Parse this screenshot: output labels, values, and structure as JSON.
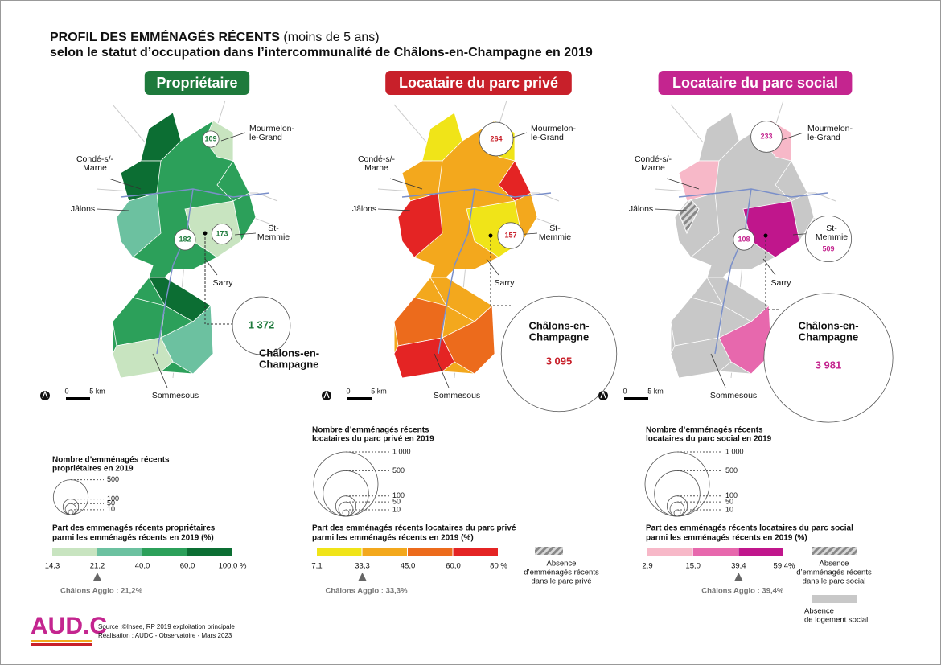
{
  "title": {
    "line1": "PROFIL DES EMMÉNAGÉS RÉCENTS",
    "line1_note": "(moins de 5 ans)",
    "line2": "selon le statut d’occupation dans l’intercommunalité de Châlons-en-Champagne en 2019"
  },
  "scale": {
    "zero": "0",
    "distance": "5 km"
  },
  "maps": [
    {
      "heading": "Propriétaire",
      "color": "#1e7a3c",
      "places": [
        [
          "Mourmelon-",
          "le-Grand"
        ],
        [
          "Condé-s/-",
          "Marne"
        ],
        [
          "Jâlons"
        ],
        [
          "St-",
          "Memmie"
        ],
        [
          "Sarry"
        ],
        [
          "Châlons-en-",
          "Champagne"
        ],
        [
          "Sommesous"
        ]
      ],
      "bubbles": [
        {
          "value": 109
        },
        {
          "value": 182
        },
        {
          "value": 173
        },
        {
          "value": 1372,
          "label": "1 372"
        }
      ],
      "size_legend": {
        "title": [
          "Nombre d’emménagés récents",
          "propriétaires en 2019"
        ],
        "values": [
          500,
          100,
          50,
          10
        ]
      },
      "class_legend": {
        "title": [
          "Part  des emmenagés récents propriétaires",
          "parmi les emménagés récents en 2019 (%)"
        ],
        "breaks": [
          {
            "value": 14.3,
            "label": "14,3"
          },
          {
            "value": 21.2,
            "label": "21,2"
          },
          {
            "value": 40.0,
            "label": "40,0"
          },
          {
            "value": 60.0,
            "label": "60,0"
          },
          {
            "value": 100.0,
            "label": "100,0 %"
          }
        ],
        "colors": [
          "#c8e4c0",
          "#6cc1a0",
          "#2ca05a",
          "#0c6e33"
        ],
        "agglo": {
          "value": 21.2,
          "label": "Châlons Agglo : 21,2%"
        }
      }
    },
    {
      "heading": "Locataire du parc privé",
      "color": "#c8202a",
      "places": [
        [
          "Mourmelon-",
          "le-Grand"
        ],
        [
          "Condé-s/-",
          "Marne"
        ],
        [
          "Jâlons"
        ],
        [
          "St-",
          "Memmie"
        ],
        [
          "Sarry"
        ],
        [
          "Châlons-en-",
          "Champagne"
        ],
        [
          "Sommesous"
        ]
      ],
      "bubbles": [
        {
          "value": 264
        },
        {
          "value": 157
        },
        {
          "value": 3095,
          "label": "3 095"
        }
      ],
      "size_legend": {
        "title": [
          "Nombre d’emménagés récents",
          "locataires du parc privé en 2019"
        ],
        "values": [
          {
            "value": 1000,
            "label": "1 000"
          },
          500,
          100,
          50,
          10
        ]
      },
      "class_legend": {
        "title": [
          "Part  des emménagés récents locataires du parc privé",
          "parmi les emménagés récents en 2019 (%)"
        ],
        "breaks": [
          {
            "value": 7.1,
            "label": "7,1"
          },
          {
            "value": 33.3,
            "label": "33,3"
          },
          {
            "value": 45.0,
            "label": "45,0"
          },
          {
            "value": 60.0,
            "label": "60,0"
          },
          {
            "value": 80,
            "label": "80 %"
          }
        ],
        "colors": [
          "#f0e418",
          "#f3a81d",
          "#ec6b1c",
          "#e42424"
        ],
        "agglo": {
          "value": 33.3,
          "label": "Châlons Agglo : 33,3%"
        },
        "hatch": [
          "Absence",
          "d’emménagés récents",
          "dans le parc privé"
        ]
      }
    },
    {
      "heading": "Locataire du parc social",
      "color": "#c4258f",
      "places": [
        [
          "Mourmelon-",
          "le-Grand"
        ],
        [
          "Condé-s/-",
          "Marne"
        ],
        [
          "Jâlons"
        ],
        [
          "St-",
          "Memmie"
        ],
        [
          "Sarry"
        ],
        [
          "Châlons-en-",
          "Champagne"
        ],
        [
          "Sommesous"
        ]
      ],
      "bubbles": [
        {
          "value": 233
        },
        {
          "value": 108
        },
        {
          "value": 509
        },
        {
          "value": 3981,
          "label": "3 981"
        }
      ],
      "size_legend": {
        "title": [
          "Nombre d’emménagés récents",
          "locataires du parc social en 2019"
        ],
        "values": [
          {
            "value": 1000,
            "label": "1 000"
          },
          500,
          100,
          50,
          10
        ]
      },
      "class_legend": {
        "title": [
          "Part  des emménagés récents locataires du parc social",
          "parmi les emménagés récents en 2019 (%)"
        ],
        "breaks": [
          {
            "value": 2.9,
            "label": "2,9"
          },
          {
            "value": 15.0,
            "label": "15,0"
          },
          {
            "value": 39.4,
            "label": "39,4"
          },
          {
            "value": 59.4,
            "label": "59,4%"
          }
        ],
        "colors": [
          "#f7b8c8",
          "#e768ad",
          "#c0168c"
        ],
        "agglo": {
          "value": 39.4,
          "label": "Châlons Agglo : 39,4%"
        },
        "hatch": [
          "Absence",
          "d’emménagés récents",
          "dans le parc social"
        ],
        "grey": [
          "Absence",
          "de logement social"
        ]
      }
    }
  ],
  "footer": {
    "logo": "AUD.C",
    "source": "Source :©Insee, RP 2019 exploitation principale",
    "credit": "Réalisation : AUDC - Observatoire - Mars 2023"
  }
}
